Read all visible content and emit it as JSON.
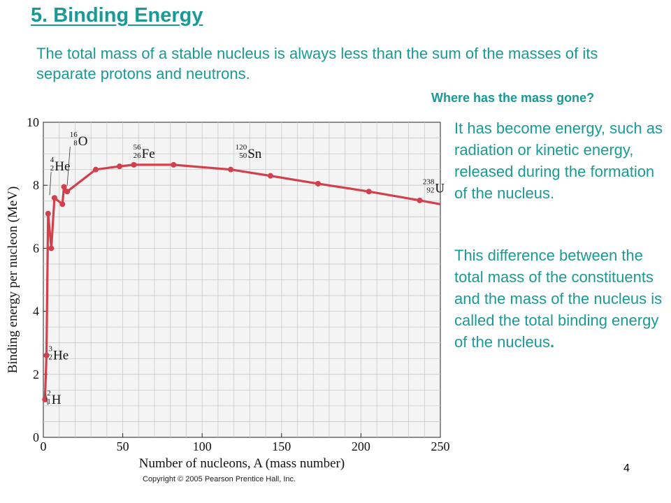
{
  "slide": {
    "title": "5. Binding Energy",
    "intro": "The total mass of a stable nucleus is always less than the sum of the masses of its separate protons and neutrons.",
    "question": "Where has the mass gone?",
    "answer": "It has become energy, such as radiation or kinetic energy, released during the formation of the nucleus.",
    "explanation": "This difference between the total mass of the constituents and the mass of the nucleus is called the total binding energy of the nucleus",
    "explanation_end": ".",
    "copyright": "Copyright © 2005 Pearson Prentice Hall, Inc.",
    "page_number": "4"
  },
  "colors": {
    "accent": "#1a9a96",
    "curve": "#d2404c",
    "grid": "#c8c8c8",
    "plot_bg": "#f4f4f4"
  },
  "chart_data": {
    "type": "line",
    "xlabel": "Number of nucleons, A (mass number)",
    "ylabel": "Binding energy per nucleon (MeV)",
    "xlim": [
      0,
      250
    ],
    "ylim": [
      0,
      10
    ],
    "x_ticks": [
      0,
      50,
      100,
      150,
      200,
      250
    ],
    "y_ticks": [
      0,
      2,
      4,
      6,
      8,
      10
    ],
    "grid": true,
    "series": [
      {
        "points": [
          [
            1,
            1.2
          ],
          [
            2,
            2.6
          ],
          [
            3,
            7.1
          ],
          [
            5,
            6.0
          ],
          [
            7,
            7.6
          ],
          [
            12,
            7.4
          ],
          [
            13,
            7.95
          ],
          [
            15,
            7.8
          ],
          [
            33,
            8.5
          ],
          [
            48,
            8.6
          ],
          [
            57,
            8.65
          ],
          [
            82,
            8.65
          ],
          [
            118,
            8.5
          ],
          [
            143,
            8.3
          ],
          [
            173,
            8.05
          ],
          [
            205,
            7.8
          ],
          [
            237,
            7.52
          ]
        ],
        "curve_end": [
          250,
          7.4
        ]
      }
    ],
    "annotations": [
      {
        "symbol": "H",
        "mass": "2",
        "atomic": "1",
        "x": 2,
        "y": 1.2
      },
      {
        "symbol": "He",
        "mass": "3",
        "atomic": "2",
        "x": 3,
        "y": 2.6
      },
      {
        "symbol": "He",
        "mass": "4",
        "atomic": "2",
        "x": 4,
        "y": 8.6
      },
      {
        "symbol": "O",
        "mass": "16",
        "atomic": "8",
        "x": 16,
        "y": 9.4
      },
      {
        "symbol": "Fe",
        "mass": "56",
        "atomic": "26",
        "x": 56,
        "y": 9.0
      },
      {
        "symbol": "Sn",
        "mass": "120",
        "atomic": "50",
        "x": 120,
        "y": 9.0
      },
      {
        "symbol": "U",
        "mass": "238",
        "atomic": "92",
        "x": 238,
        "y": 7.9
      }
    ]
  }
}
